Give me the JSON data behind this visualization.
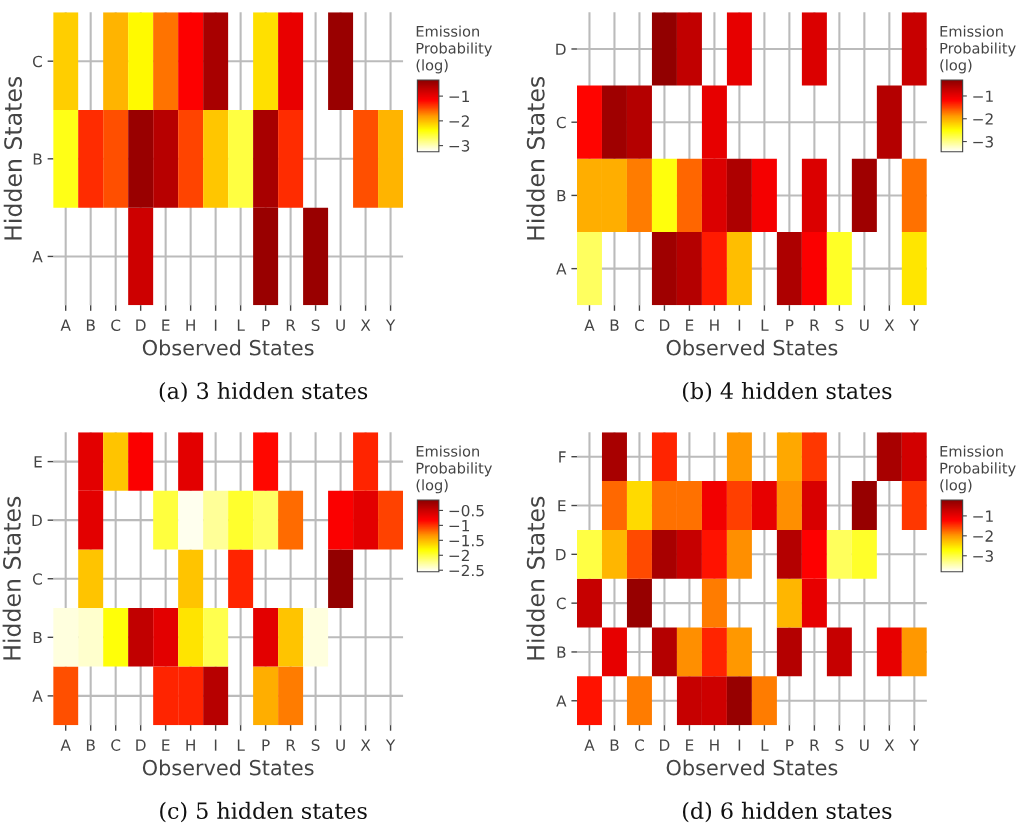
{
  "chart_data": [
    {
      "type": "heatmap",
      "title": "(a) 3 hidden states",
      "xlabel": "Observed States",
      "ylabel": "Hidden States",
      "clabel": "Emission Probability (log)",
      "grid": true,
      "categories": [
        "A",
        "B",
        "C",
        "D",
        "E",
        "H",
        "I",
        "L",
        "P",
        "R",
        "S",
        "U",
        "X",
        "Y"
      ],
      "y_categories": [
        "C",
        "B",
        "A"
      ],
      "cells": [
        [
          -2.1,
          null,
          -1.95,
          -2.35,
          -1.65,
          -1.15,
          -0.55,
          null,
          -2.2,
          -1.0,
          null,
          -0.45,
          null,
          null
        ],
        [
          -2.45,
          -1.35,
          -1.5,
          -0.45,
          -0.65,
          -1.45,
          -2.05,
          -2.6,
          -0.55,
          -1.35,
          null,
          null,
          -1.5,
          -1.95
        ],
        [
          null,
          null,
          null,
          -0.8,
          null,
          null,
          null,
          null,
          -0.45,
          null,
          -0.45,
          null,
          null,
          null
        ]
      ],
      "clim": [
        -3.25,
        -0.35
      ],
      "cticks": [
        -1,
        -2,
        -3
      ]
    },
    {
      "type": "heatmap",
      "title": "(b) 4 hidden states",
      "xlabel": "Observed States",
      "ylabel": "Hidden States",
      "clabel": "Emission Probability (log)",
      "grid": true,
      "categories": [
        "A",
        "B",
        "C",
        "D",
        "E",
        "H",
        "I",
        "L",
        "P",
        "R",
        "S",
        "U",
        "X",
        "Y"
      ],
      "y_categories": [
        "D",
        "C",
        "B",
        "A"
      ],
      "cells": [
        [
          null,
          null,
          null,
          -0.35,
          -0.7,
          null,
          -1.0,
          null,
          null,
          -0.9,
          null,
          null,
          null,
          -0.75
        ],
        [
          -1.2,
          -0.45,
          -0.6,
          null,
          null,
          -1.0,
          null,
          null,
          null,
          null,
          null,
          null,
          -0.6,
          null
        ],
        [
          -2.0,
          -2.0,
          -1.75,
          -2.55,
          -1.65,
          -0.9,
          -0.55,
          -1.1,
          null,
          -0.9,
          null,
          -0.45,
          null,
          -1.7
        ],
        [
          -2.85,
          null,
          null,
          -0.45,
          -0.6,
          -1.3,
          -2.1,
          null,
          -0.55,
          -1.15,
          -2.65,
          null,
          null,
          -2.35
        ]
      ],
      "clim": [
        -3.45,
        -0.3
      ],
      "cticks": [
        -1,
        -2,
        -3
      ]
    },
    {
      "type": "heatmap",
      "title": "(c) 5 hidden states",
      "xlabel": "Observed States",
      "ylabel": "Hidden States",
      "clabel": "Emission Probability (log)",
      "grid": true,
      "categories": [
        "A",
        "B",
        "C",
        "D",
        "E",
        "H",
        "I",
        "L",
        "P",
        "R",
        "S",
        "U",
        "X",
        "Y"
      ],
      "y_categories": [
        "E",
        "D",
        "C",
        "B",
        "A"
      ],
      "cells": [
        [
          null,
          -0.65,
          -1.55,
          -0.8,
          null,
          -0.65,
          null,
          null,
          -0.85,
          null,
          null,
          null,
          -0.95,
          null
        ],
        [
          null,
          -0.65,
          null,
          null,
          -2.0,
          -2.5,
          -2.25,
          -1.95,
          -2.1,
          -1.2,
          null,
          -0.8,
          -0.65,
          -1.05
        ],
        [
          null,
          -1.55,
          null,
          null,
          null,
          -1.55,
          null,
          -0.95,
          null,
          null,
          null,
          -0.2,
          null,
          null
        ],
        [
          -2.45,
          -2.4,
          -1.85,
          -0.45,
          -0.65,
          -1.7,
          -2.05,
          null,
          -0.65,
          -1.55,
          -2.45,
          null,
          null,
          null
        ],
        [
          -1.1,
          null,
          null,
          null,
          -0.95,
          -0.95,
          -0.4,
          null,
          -1.45,
          -1.25,
          null,
          null,
          null,
          null
        ]
      ],
      "clim": [
        -2.55,
        -0.15
      ],
      "cticks": [
        -0.5,
        -1,
        -1.5,
        -2,
        -2.5
      ]
    },
    {
      "type": "heatmap",
      "title": "(d) 6 hidden states",
      "xlabel": "Observed States",
      "ylabel": "Hidden States",
      "clabel": "Emission Probability (log)",
      "grid": true,
      "categories": [
        "A",
        "B",
        "C",
        "D",
        "E",
        "H",
        "I",
        "L",
        "P",
        "R",
        "S",
        "U",
        "X",
        "Y"
      ],
      "y_categories": [
        "F",
        "E",
        "D",
        "C",
        "B",
        "A"
      ],
      "cells": [
        [
          null,
          -0.45,
          null,
          -1.4,
          null,
          null,
          -2.0,
          null,
          -2.1,
          -1.5,
          null,
          null,
          -0.45,
          -0.8
        ],
        [
          null,
          -1.75,
          -2.45,
          -1.8,
          -1.8,
          -1.1,
          -1.55,
          -1.0,
          -1.95,
          -0.85,
          null,
          -0.3,
          null,
          -1.5
        ],
        [
          -3.0,
          -2.2,
          -1.6,
          -0.45,
          -0.7,
          -1.3,
          -1.95,
          null,
          -0.55,
          -1.2,
          -3.1,
          -2.9,
          null,
          null
        ],
        [
          -0.7,
          null,
          -0.3,
          null,
          null,
          -1.85,
          null,
          null,
          -2.2,
          -1.0,
          null,
          null,
          null,
          null
        ],
        [
          null,
          -1.0,
          null,
          -0.55,
          -1.95,
          -1.4,
          -2.0,
          null,
          -0.55,
          null,
          -0.7,
          null,
          -1.0,
          -2.0
        ],
        [
          -1.3,
          null,
          -1.85,
          null,
          -0.7,
          -0.75,
          -0.3,
          -1.85,
          null,
          null,
          null,
          null,
          null,
          null
        ]
      ],
      "clim": [
        -3.8,
        -0.2
      ],
      "cticks": [
        -1,
        -2,
        -3
      ]
    }
  ]
}
